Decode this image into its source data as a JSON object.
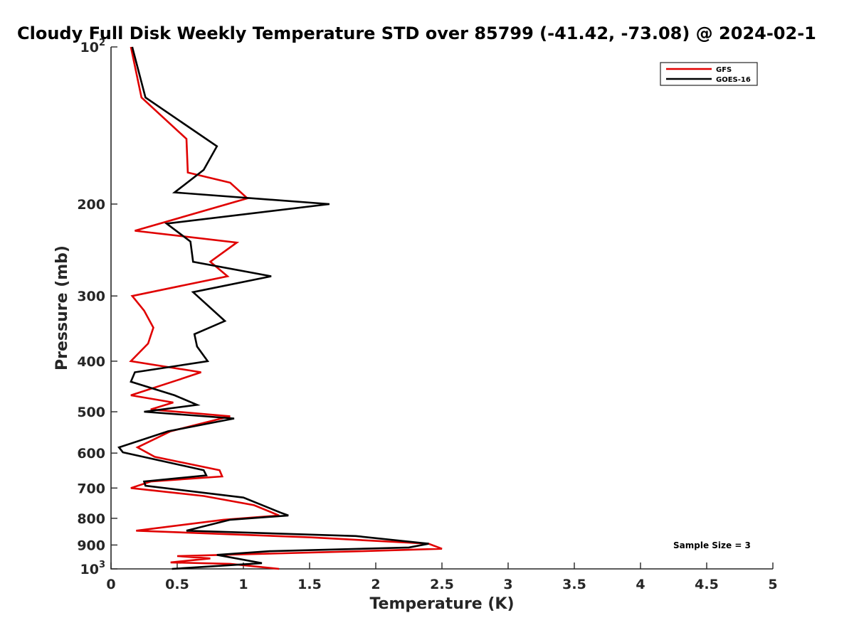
{
  "chart_data": {
    "type": "line",
    "title": "Cloudy Full Disk Weekly Temperature STD over 85799 (-41.42, -73.08) @ 2024-02-1",
    "xlabel": "Temperature (K)",
    "ylabel": "Pressure (mb)",
    "xlim": [
      0,
      5
    ],
    "ylim": [
      100,
      1000
    ],
    "y_scale": "log",
    "y_reversed": true,
    "x_ticks": [
      "0",
      "0.5",
      "1",
      "1.5",
      "2",
      "2.5",
      "3",
      "3.5",
      "4",
      "4.5",
      "5"
    ],
    "y_ticks": [
      {
        "value": 100,
        "label": "10",
        "sup": "2"
      },
      {
        "value": 200,
        "label": "200",
        "sup": ""
      },
      {
        "value": 300,
        "label": "300",
        "sup": ""
      },
      {
        "value": 400,
        "label": "400",
        "sup": ""
      },
      {
        "value": 500,
        "label": "500",
        "sup": ""
      },
      {
        "value": 600,
        "label": "600",
        "sup": ""
      },
      {
        "value": 700,
        "label": "700",
        "sup": ""
      },
      {
        "value": 800,
        "label": "800",
        "sup": ""
      },
      {
        "value": 900,
        "label": "900",
        "sup": ""
      },
      {
        "value": 1000,
        "label": "10",
        "sup": "3"
      }
    ],
    "grid": false,
    "legend_position": "top-right",
    "series": [
      {
        "name": "GFS",
        "color": "#e00000",
        "points": [
          [
            0.15,
            100
          ],
          [
            0.23,
            125
          ],
          [
            0.57,
            150
          ],
          [
            0.58,
            174
          ],
          [
            0.9,
            182
          ],
          [
            1.03,
            195
          ],
          [
            0.18,
            225
          ],
          [
            0.95,
            237
          ],
          [
            0.75,
            258
          ],
          [
            0.88,
            275
          ],
          [
            0.16,
            300
          ],
          [
            0.25,
            320
          ],
          [
            0.32,
            345
          ],
          [
            0.28,
            370
          ],
          [
            0.15,
            400
          ],
          [
            0.68,
            420
          ],
          [
            0.5,
            435
          ],
          [
            0.15,
            465
          ],
          [
            0.47,
            480
          ],
          [
            0.3,
            495
          ],
          [
            0.9,
            510
          ],
          [
            0.45,
            545
          ],
          [
            0.2,
            585
          ],
          [
            0.33,
            610
          ],
          [
            0.82,
            647
          ],
          [
            0.84,
            665
          ],
          [
            0.3,
            680
          ],
          [
            0.15,
            700
          ],
          [
            0.7,
            725
          ],
          [
            1.08,
            755
          ],
          [
            1.27,
            790
          ],
          [
            0.85,
            805
          ],
          [
            0.19,
            845
          ],
          [
            1.5,
            870
          ],
          [
            2.4,
            895
          ],
          [
            2.5,
            915
          ],
          [
            1.9,
            925
          ],
          [
            0.5,
            945
          ],
          [
            0.75,
            955
          ],
          [
            0.45,
            972
          ],
          [
            0.9,
            978
          ],
          [
            1.27,
            1000
          ]
        ]
      },
      {
        "name": "GOES-16",
        "color": "#000000",
        "points": [
          [
            0.16,
            100
          ],
          [
            0.26,
            125
          ],
          [
            0.8,
            155
          ],
          [
            0.7,
            172
          ],
          [
            0.48,
            190
          ],
          [
            1.65,
            200
          ],
          [
            0.42,
            218
          ],
          [
            0.6,
            236
          ],
          [
            0.62,
            258
          ],
          [
            1.21,
            275
          ],
          [
            0.62,
            295
          ],
          [
            0.86,
            335
          ],
          [
            0.63,
            355
          ],
          [
            0.65,
            375
          ],
          [
            0.73,
            400
          ],
          [
            0.18,
            420
          ],
          [
            0.15,
            438
          ],
          [
            0.48,
            465
          ],
          [
            0.65,
            485
          ],
          [
            0.25,
            500
          ],
          [
            0.93,
            515
          ],
          [
            0.43,
            545
          ],
          [
            0.06,
            585
          ],
          [
            0.09,
            598
          ],
          [
            0.7,
            647
          ],
          [
            0.72,
            662
          ],
          [
            0.25,
            680
          ],
          [
            0.26,
            693
          ],
          [
            1.0,
            730
          ],
          [
            1.28,
            780
          ],
          [
            1.34,
            790
          ],
          [
            0.9,
            805
          ],
          [
            0.57,
            845
          ],
          [
            1.85,
            865
          ],
          [
            2.4,
            895
          ],
          [
            2.25,
            910
          ],
          [
            1.2,
            925
          ],
          [
            0.8,
            940
          ],
          [
            1.14,
            975
          ],
          [
            0.46,
            1000
          ]
        ]
      }
    ],
    "annotation": "Sample Size = 3"
  }
}
